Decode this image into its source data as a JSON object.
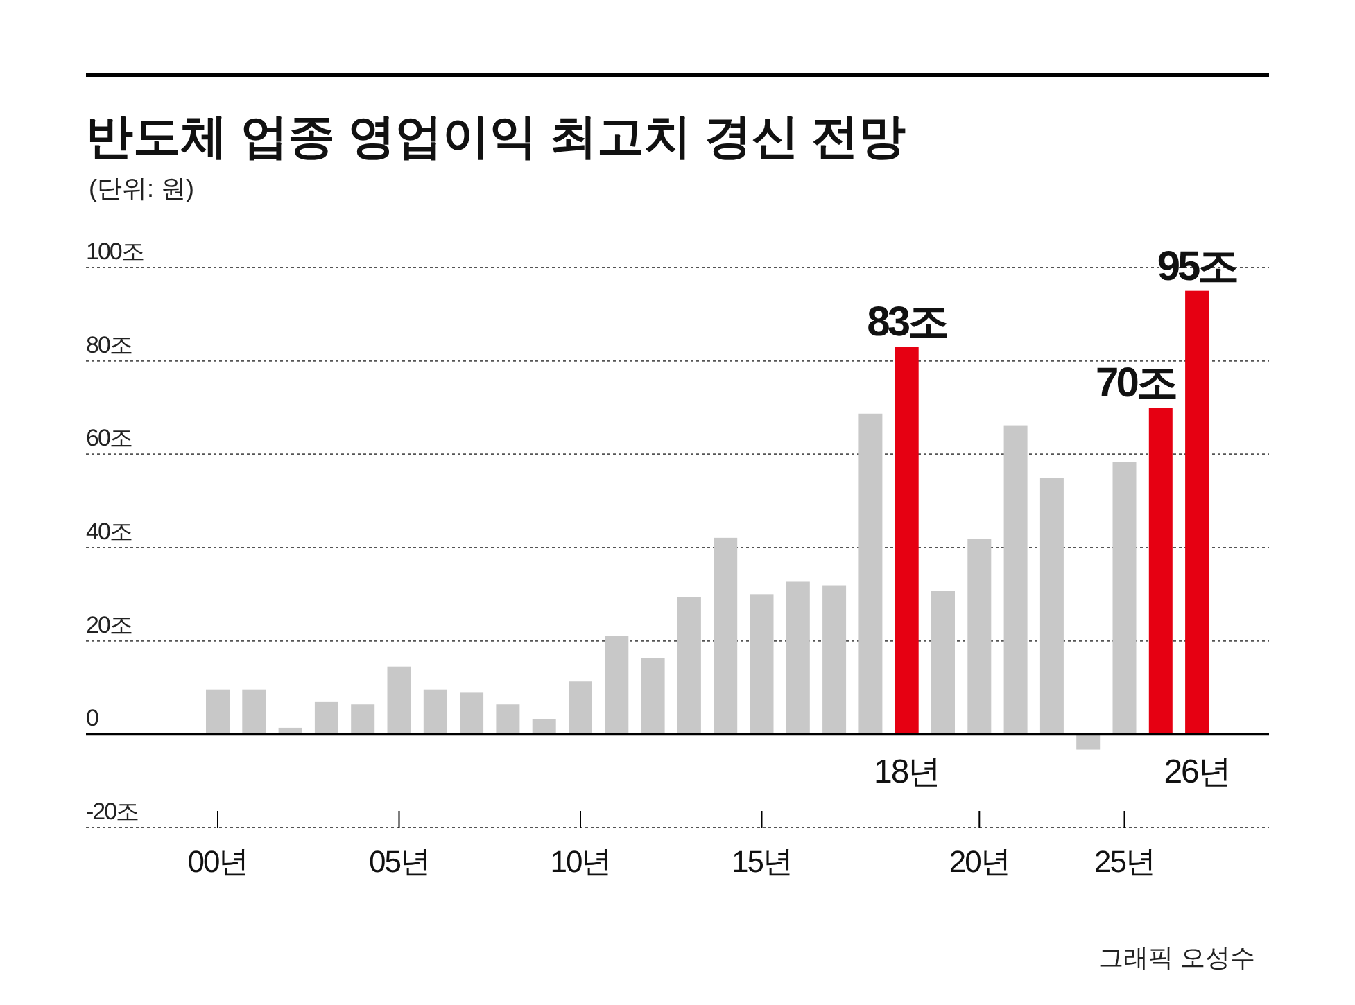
{
  "chart_data": {
    "type": "bar",
    "title": "반도체 업종 영업이익 최고치 경신 전망",
    "subtitle": "(단위: 원)",
    "categories": [
      "00년",
      null,
      null,
      null,
      null,
      "05년",
      null,
      null,
      null,
      null,
      "10년",
      null,
      null,
      null,
      null,
      "15년",
      null,
      null,
      null,
      "18년",
      null,
      "20년",
      null,
      null,
      null,
      "25년",
      null,
      "26년"
    ],
    "values": [
      9.6,
      9.6,
      1.4,
      6.9,
      6.4,
      14.5,
      9.6,
      8.9,
      6.4,
      3.2,
      11.3,
      21.1,
      16.3,
      29.4,
      42.1,
      30.0,
      32.8,
      31.9,
      68.7,
      83,
      30.7,
      41.9,
      66.2,
      55.0,
      -3.3,
      58.4,
      70,
      95
    ],
    "colors": [
      "#c8c8c8",
      "#c8c8c8",
      "#c8c8c8",
      "#c8c8c8",
      "#c8c8c8",
      "#c8c8c8",
      "#c8c8c8",
      "#c8c8c8",
      "#c8c8c8",
      "#c8c8c8",
      "#c8c8c8",
      "#c8c8c8",
      "#c8c8c8",
      "#c8c8c8",
      "#c8c8c8",
      "#c8c8c8",
      "#c8c8c8",
      "#c8c8c8",
      "#c8c8c8",
      "#e60012",
      "#c8c8c8",
      "#c8c8c8",
      "#c8c8c8",
      "#c8c8c8",
      "#c8c8c8",
      "#c8c8c8",
      "#e60012",
      "#e60012"
    ],
    "value_labels": [
      null,
      null,
      null,
      null,
      null,
      null,
      null,
      null,
      null,
      null,
      null,
      null,
      null,
      null,
      null,
      null,
      null,
      null,
      null,
      "83조",
      null,
      null,
      null,
      null,
      null,
      null,
      "70조",
      "95조"
    ],
    "ylim": [
      -20,
      100
    ],
    "yticks": [
      {
        "value": -20,
        "label": "-20조"
      },
      0,
      {
        "value": 20,
        "label": "20조"
      },
      {
        "value": 40,
        "label": "40조"
      },
      {
        "value": 60,
        "label": "60조"
      },
      {
        "value": 80,
        "label": "80조"
      },
      {
        "value": 100,
        "label": "100조"
      }
    ],
    "grid": "y",
    "annotations": [
      "그래픽 오성수"
    ]
  }
}
